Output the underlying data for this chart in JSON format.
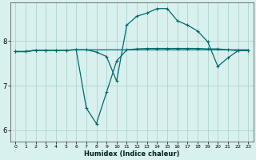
{
  "title": "",
  "xlabel": "Humidex (Indice chaleur)",
  "background_color": "#d8f0ee",
  "grid_color": "#aed4d0",
  "line_color": "#006b6b",
  "xlim": [
    -0.5,
    23.5
  ],
  "ylim": [
    5.75,
    8.85
  ],
  "yticks": [
    6,
    7,
    8
  ],
  "xticks": [
    0,
    1,
    2,
    3,
    4,
    5,
    6,
    7,
    8,
    9,
    10,
    11,
    12,
    13,
    14,
    15,
    16,
    17,
    18,
    19,
    20,
    21,
    22,
    23
  ],
  "series1_x": [
    0,
    1,
    2,
    3,
    4,
    5,
    6,
    7,
    8,
    9,
    10,
    11,
    12,
    13,
    14,
    15,
    16,
    17,
    18,
    19,
    20,
    21,
    22,
    23
  ],
  "series1_y": [
    7.76,
    7.76,
    7.79,
    7.79,
    7.79,
    7.79,
    7.8,
    7.8,
    7.8,
    7.8,
    7.8,
    7.8,
    7.8,
    7.8,
    7.8,
    7.8,
    7.8,
    7.8,
    7.8,
    7.8,
    7.8,
    7.8,
    7.8,
    7.8
  ],
  "series2_x": [
    0,
    1,
    2,
    3,
    4,
    5,
    6,
    7,
    8,
    9,
    10,
    11,
    12,
    13,
    14,
    15,
    16,
    17,
    18,
    19,
    20,
    21,
    22,
    23
  ],
  "series2_y": [
    7.76,
    7.76,
    7.79,
    7.79,
    7.79,
    7.79,
    7.8,
    7.8,
    7.75,
    7.65,
    7.1,
    8.35,
    8.55,
    8.62,
    8.72,
    8.72,
    8.45,
    8.35,
    8.22,
    7.98,
    7.43,
    7.62,
    7.78,
    7.78
  ],
  "series3_x": [
    0,
    1,
    2,
    3,
    4,
    5,
    6,
    7,
    8,
    9,
    10,
    11,
    12,
    13,
    14,
    15,
    16,
    17,
    18,
    19,
    20,
    21,
    22,
    23
  ],
  "series3_y": [
    7.76,
    7.76,
    7.79,
    7.79,
    7.79,
    7.79,
    7.8,
    6.5,
    6.15,
    6.85,
    7.55,
    7.8,
    7.82,
    7.83,
    7.83,
    7.83,
    7.83,
    7.83,
    7.83,
    7.82,
    7.82,
    7.8,
    7.78,
    7.78
  ]
}
